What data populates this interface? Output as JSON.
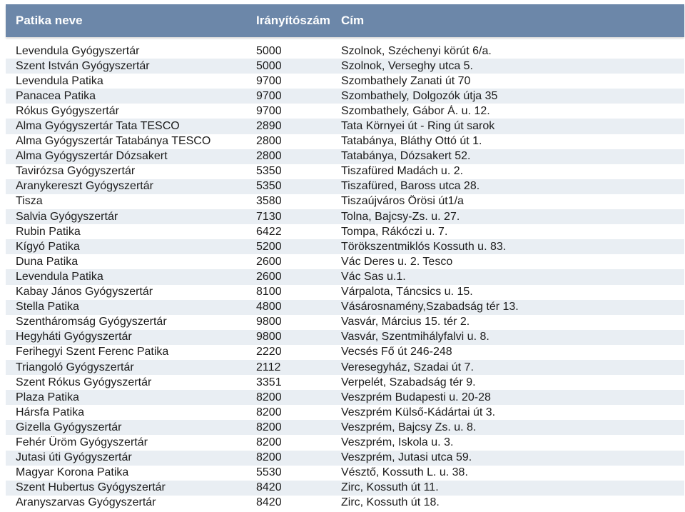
{
  "header": {
    "col_name": "Patika neve",
    "col_zip": "Irányítószám",
    "col_address": "Cím"
  },
  "rows": [
    {
      "name": "Levendula Gyógyszertár",
      "zip": "5000",
      "address": "Szolnok, Széchenyi körút 6/a."
    },
    {
      "name": "Szent István Gyógyszertár",
      "zip": "5000",
      "address": "Szolnok, Verseghy utca 5."
    },
    {
      "name": "Levendula Patika",
      "zip": "9700",
      "address": "Szombathely Zanati út 70"
    },
    {
      "name": "Panacea Patika",
      "zip": "9700",
      "address": "Szombathely, Dolgozók útja 35"
    },
    {
      "name": "Rókus Gyógyszertár",
      "zip": "9700",
      "address": "Szombathely, Gábor Á. u. 12."
    },
    {
      "name": "Alma Gyógyszertár Tata TESCO",
      "zip": "2890",
      "address": "Tata Környei út - Ring út sarok"
    },
    {
      "name": "Alma Gyógyszertár Tatabánya TESCO",
      "zip": "2800",
      "address": "Tatabánya, Bláthy Ottó út 1."
    },
    {
      "name": "Alma Gyógyszertár Dózsakert",
      "zip": "2800",
      "address": "Tatabánya, Dózsakert 52."
    },
    {
      "name": "Tavirózsa Gyógyszertár",
      "zip": "5350",
      "address": "Tiszafüred Madách u. 2."
    },
    {
      "name": "Aranykereszt Gyógyszertár",
      "zip": "5350",
      "address": "Tiszafüred, Baross utca 28."
    },
    {
      "name": "Tisza",
      "zip": "3580",
      "address": "Tiszaújváros Örösi út1/a"
    },
    {
      "name": "Salvia Gyógyszertár",
      "zip": "7130",
      "address": "Tolna, Bajcsy-Zs. u. 27."
    },
    {
      "name": "Rubin Patika",
      "zip": "6422",
      "address": "Tompa, Rákóczi u. 7."
    },
    {
      "name": "Kígyó Patika",
      "zip": "5200",
      "address": "Törökszentmiklós Kossuth u. 83."
    },
    {
      "name": "Duna Patika",
      "zip": "2600",
      "address": "Vác Deres u. 2. Tesco"
    },
    {
      "name": "Levendula Patika",
      "zip": "2600",
      "address": "Vác Sas u.1."
    },
    {
      "name": "Kabay János Gyógyszertár",
      "zip": "8100",
      "address": "Várpalota, Táncsics u. 15."
    },
    {
      "name": "Stella Patika",
      "zip": "4800",
      "address": "Vásárosnamény,Szabadság tér 13."
    },
    {
      "name": "Szentháromság Gyógyszertár",
      "zip": "9800",
      "address": "Vasvár, Március 15. tér 2."
    },
    {
      "name": "Hegyháti Gyógyszertár",
      "zip": "9800",
      "address": "Vasvár, Szentmihályfalvi u. 8."
    },
    {
      "name": "Ferihegyi Szent Ferenc Patika",
      "zip": "2220",
      "address": "Vecsés Fő út 246-248"
    },
    {
      "name": "Triangoló Gyógyszertár",
      "zip": "2112",
      "address": "Veresegyház, Szadai út 7."
    },
    {
      "name": "Szent Rókus Gyógyszertár",
      "zip": "3351",
      "address": "Verpelét, Szabadság tér 9."
    },
    {
      "name": "Plaza Patika",
      "zip": "8200",
      "address": "Veszprém Budapesti u. 20-28"
    },
    {
      "name": "Hársfa Patika",
      "zip": "8200",
      "address": "Veszprém Külső-Kádártai út 3."
    },
    {
      "name": "Gizella Gyógyszertár",
      "zip": "8200",
      "address": "Veszprém, Bajcsy Zs. u. 8."
    },
    {
      "name": "Fehér Üröm Gyógyszertár",
      "zip": "8200",
      "address": "Veszprém, Iskola u. 3."
    },
    {
      "name": "Jutasi úti Gyógyszertár",
      "zip": "8200",
      "address": "Veszprém, Jutasi utca 59."
    },
    {
      "name": "Magyar Korona Patika",
      "zip": "5530",
      "address": "Vésztő, Kossuth L. u. 38."
    },
    {
      "name": "Szent Hubertus Gyógyszertár",
      "zip": "8420",
      "address": "Zirc, Kossuth út 11."
    },
    {
      "name": "Aranyszarvas Gyógyszertár",
      "zip": "8420",
      "address": "Zirc, Kossuth út 18."
    }
  ]
}
